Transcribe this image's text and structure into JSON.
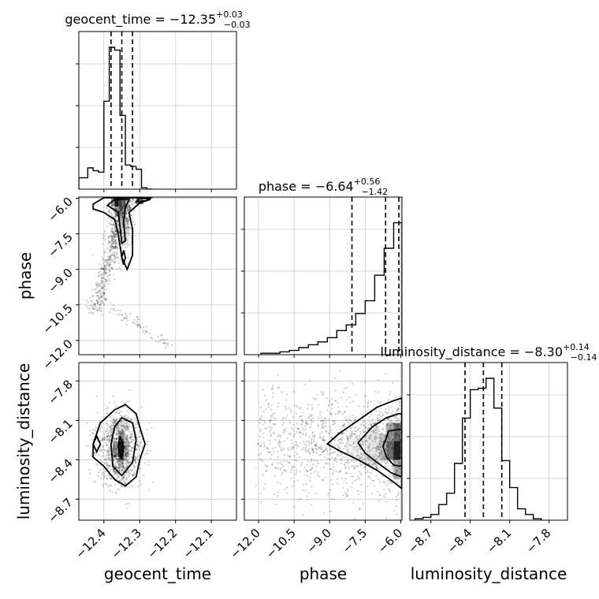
{
  "chart_data": {
    "type": "corner",
    "parameters": [
      "geocent_time",
      "phase",
      "luminosity_distance"
    ],
    "titles": [
      {
        "name": "geocent_time",
        "value": "−12.35",
        "plus": "+0.03",
        "minus": "−0.03"
      },
      {
        "name": "phase",
        "value": "−6.64",
        "plus": "+0.56",
        "minus": "−1.42"
      },
      {
        "name": "luminosity_distance",
        "value": "−8.30",
        "plus": "+0.14",
        "minus": "−0.14"
      }
    ],
    "xlabels": [
      "geocent_time",
      "phase",
      "luminosity_distance"
    ],
    "ylabels": {
      "row1": "phase",
      "row2": "luminosity_distance"
    },
    "ranges": {
      "geocent_time": [
        -12.47,
        -12.03
      ],
      "phase": [
        -12.6,
        -5.95
      ],
      "luminosity_distance": [
        -8.86,
        -7.66
      ]
    },
    "ticks": {
      "geocent_time": [
        "−12.4",
        "−12.3",
        "−12.2",
        "−12.1"
      ],
      "phase": [
        "−12.0",
        "−10.5",
        "−9.0",
        "−7.5",
        "−6.0"
      ],
      "luminosity_distance": [
        "−8.7",
        "−8.4",
        "−8.1",
        "−7.8"
      ]
    },
    "quantiles": {
      "geocent_time": [
        -12.38,
        -12.35,
        -12.32
      ],
      "phase": [
        -8.06,
        -6.64,
        -6.08
      ],
      "luminosity_distance": [
        -8.44,
        -8.3,
        -8.16
      ]
    },
    "histograms": {
      "geocent_time": {
        "bins": [
          -12.47,
          -12.445,
          -12.43,
          -12.415,
          -12.4,
          -12.385,
          -12.37,
          -12.355,
          -12.34,
          -12.325,
          -12.31,
          -12.295,
          -12.28,
          -12.265
        ],
        "counts": [
          0.08,
          0.15,
          0.13,
          0.12,
          0.62,
          1.0,
          0.98,
          0.52,
          0.17,
          0.16,
          0.14,
          0.01,
          0
        ]
      },
      "phase": {
        "bins": [
          -11.9,
          -11.5,
          -11.1,
          -10.7,
          -10.3,
          -9.9,
          -9.5,
          -9.1,
          -8.7,
          -8.3,
          -7.9,
          -7.5,
          -7.1,
          -6.7,
          -6.3,
          -5.95
        ],
        "counts": [
          0.01,
          0.01,
          0.02,
          0.03,
          0.05,
          0.07,
          0.09,
          0.12,
          0.17,
          0.21,
          0.29,
          0.38,
          0.56,
          0.75,
          0.93
        ]
      },
      "luminosity_distance": {
        "bins": [
          -8.82,
          -8.76,
          -8.7,
          -8.64,
          -8.58,
          -8.52,
          -8.46,
          -8.4,
          -8.34,
          -8.28,
          -8.22,
          -8.16,
          -8.1,
          -8.04,
          -7.98,
          -7.92,
          -7.86
        ],
        "counts": [
          0.01,
          0.02,
          0.04,
          0.11,
          0.19,
          0.4,
          0.72,
          0.92,
          0.93,
          1.0,
          0.79,
          0.42,
          0.23,
          0.08,
          0.04,
          0.01
        ]
      }
    },
    "grid": true
  }
}
